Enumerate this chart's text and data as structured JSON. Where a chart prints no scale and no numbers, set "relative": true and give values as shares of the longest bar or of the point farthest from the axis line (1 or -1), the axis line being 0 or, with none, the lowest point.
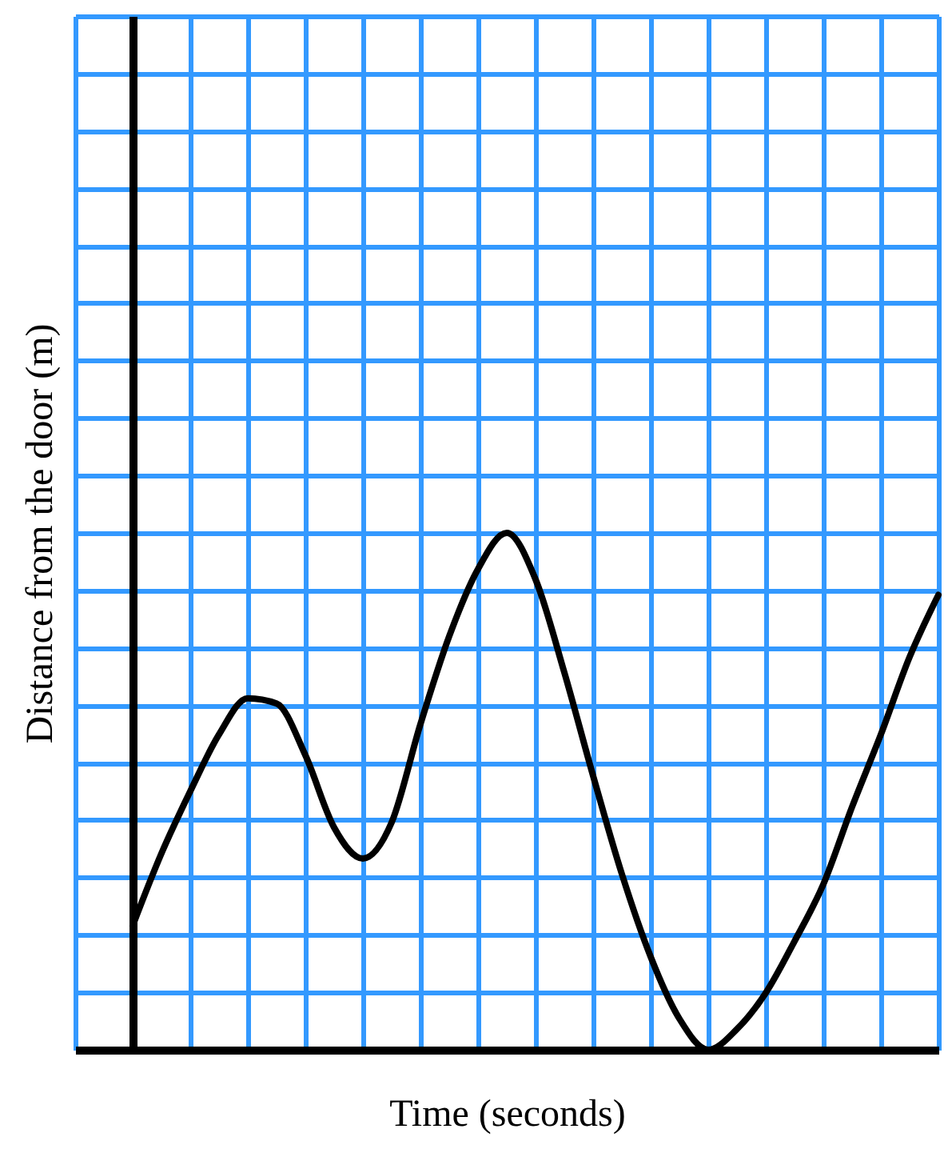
{
  "chart_data": {
    "type": "line",
    "relative": true,
    "xlabel": "Time (seconds)",
    "ylabel": "Distance from the door (m)",
    "grid": true,
    "marker": "none",
    "line_style": "solid",
    "categories": [
      null,
      null,
      null,
      null,
      null,
      null,
      null,
      null,
      null,
      null,
      null,
      null,
      null,
      null,
      null,
      null,
      null,
      null,
      null,
      null,
      null,
      null,
      null,
      null,
      null,
      null,
      null,
      null,
      null
    ],
    "series": [
      {
        "color": "#000000",
        "values": [
          0.24,
          0.38,
          0.5,
          0.61,
          0.68,
          0.67,
          0.57,
          0.43,
          0.37,
          0.44,
          0.63,
          0.8,
          0.93,
          1,
          0.91,
          0.73,
          0.53,
          0.34,
          0.18,
          0.06,
          0,
          0.04,
          0.11,
          0.21,
          0.32,
          0.47,
          0.61,
          0.76,
          0.88
        ]
      }
    ]
  }
}
